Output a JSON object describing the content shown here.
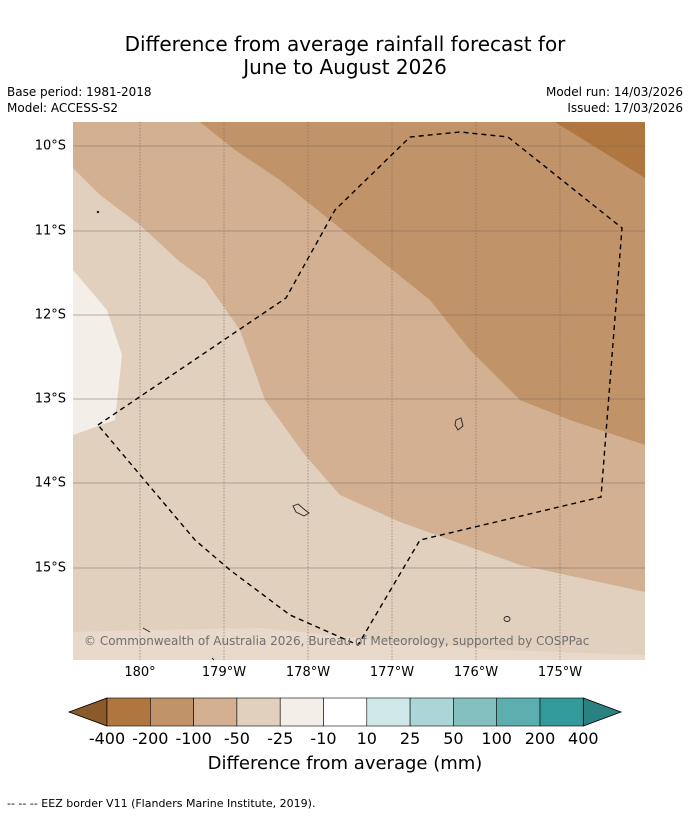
{
  "title": {
    "line1": "Difference from average rainfall forecast for",
    "line2": "June to August 2026"
  },
  "meta": {
    "base_period": "Base period: 1981-2018",
    "model": "Model: ACCESS-S2",
    "model_run": "Model run: 14/03/2026",
    "issued": "Issued: 17/03/2026"
  },
  "axes": {
    "lat_labels": [
      "10°S",
      "11°S",
      "12°S",
      "13°S",
      "14°S",
      "15°S"
    ],
    "lon_labels": [
      "180°",
      "179°W",
      "178°W",
      "177°W",
      "176°W",
      "175°W"
    ]
  },
  "credit": "© Commonwealth of Australia 2026, Bureau of Meteorology, supported by COSPPac",
  "colorbar": {
    "labels": [
      "-400",
      "-200",
      "-100",
      "-50",
      "-25",
      "-10",
      "10",
      "25",
      "50",
      "100",
      "200",
      "400"
    ],
    "colors": [
      "#af7640",
      "#c19369",
      "#d2b091",
      "#e2d0bf",
      "#f3eee8",
      "#ffffff",
      "#d1e8e8",
      "#abd5d6",
      "#85c0c1",
      "#5daeae",
      "#339a9b"
    ],
    "low_extend_color": "#8a5a2b",
    "high_extend_color": "#2b8081",
    "title": "Difference from average (mm)"
  },
  "footer": "--  --  -- EEZ border V11 (Flanders Marine Institute, 2019)."
}
